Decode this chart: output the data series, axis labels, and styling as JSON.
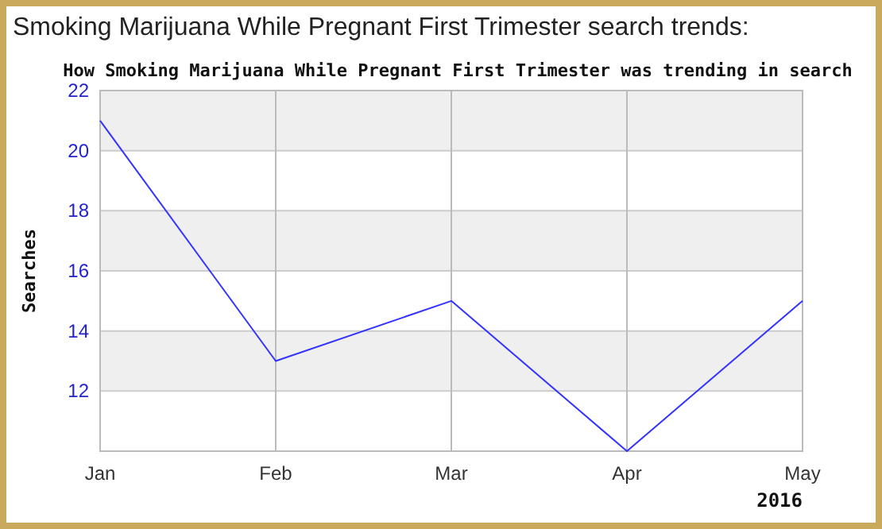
{
  "chart_data": {
    "type": "line",
    "title": "Smoking Marijuana While Pregnant First Trimester search trends:",
    "subtitle": "How Smoking Marijuana While Pregnant First Trimester was trending in search",
    "ylabel": "Searches",
    "categories": [
      "Jan",
      "Feb",
      "Mar",
      "Apr",
      "May"
    ],
    "series": [
      {
        "color": "#3333ff",
        "values": [
          21,
          13,
          15,
          10,
          15
        ]
      }
    ],
    "ylim": [
      10,
      22
    ],
    "yticks": [
      12,
      14,
      16,
      18,
      20,
      22
    ],
    "grid": true,
    "annotations": [
      "2016"
    ]
  }
}
